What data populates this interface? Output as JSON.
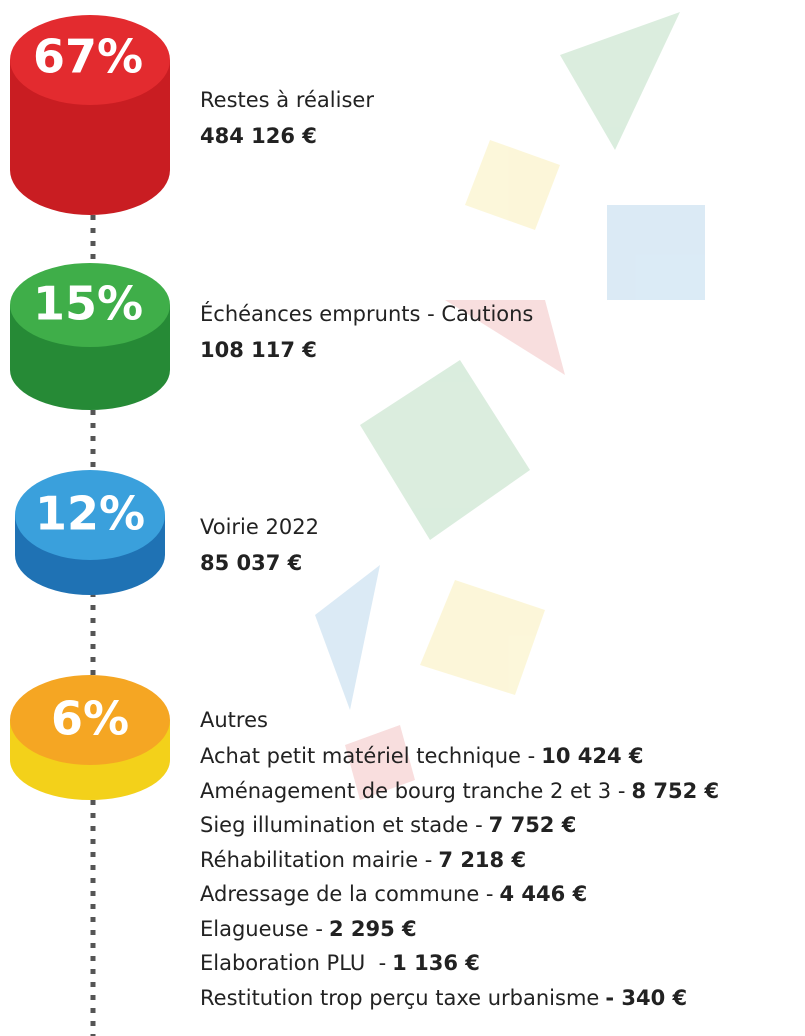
{
  "items": [
    {
      "percent": "67%",
      "label": "Restes à réaliser",
      "amount": "484 126 €"
    },
    {
      "percent": "15%",
      "label": "Échéances emprunts - Cautions",
      "amount": "108 117 €"
    },
    {
      "percent": "12%",
      "label": "Voirie 2022",
      "amount": "85 037 €"
    },
    {
      "percent": "6%",
      "label": "Autres"
    }
  ],
  "others": [
    {
      "label": "Achat petit matériel technique -",
      "amount": "10 424 €"
    },
    {
      "label": "Aménagement de bourg tranche 2 et 3 -",
      "amount": "8 752 €"
    },
    {
      "label": "Sieg illumination et stade -",
      "amount": "7 752 €"
    },
    {
      "label": "Réhabilitation mairie -",
      "amount": "7 218 €"
    },
    {
      "label": "Adressage de la commune -",
      "amount": "4 446 €"
    },
    {
      "label": "Elagueuse -",
      "amount": "2 295 €"
    },
    {
      "label": "Elaboration PLU  -",
      "amount": "1 136 €"
    },
    {
      "label": "Restitution trop perçu taxe urbanisme",
      "amount": "- 340 €"
    }
  ]
}
